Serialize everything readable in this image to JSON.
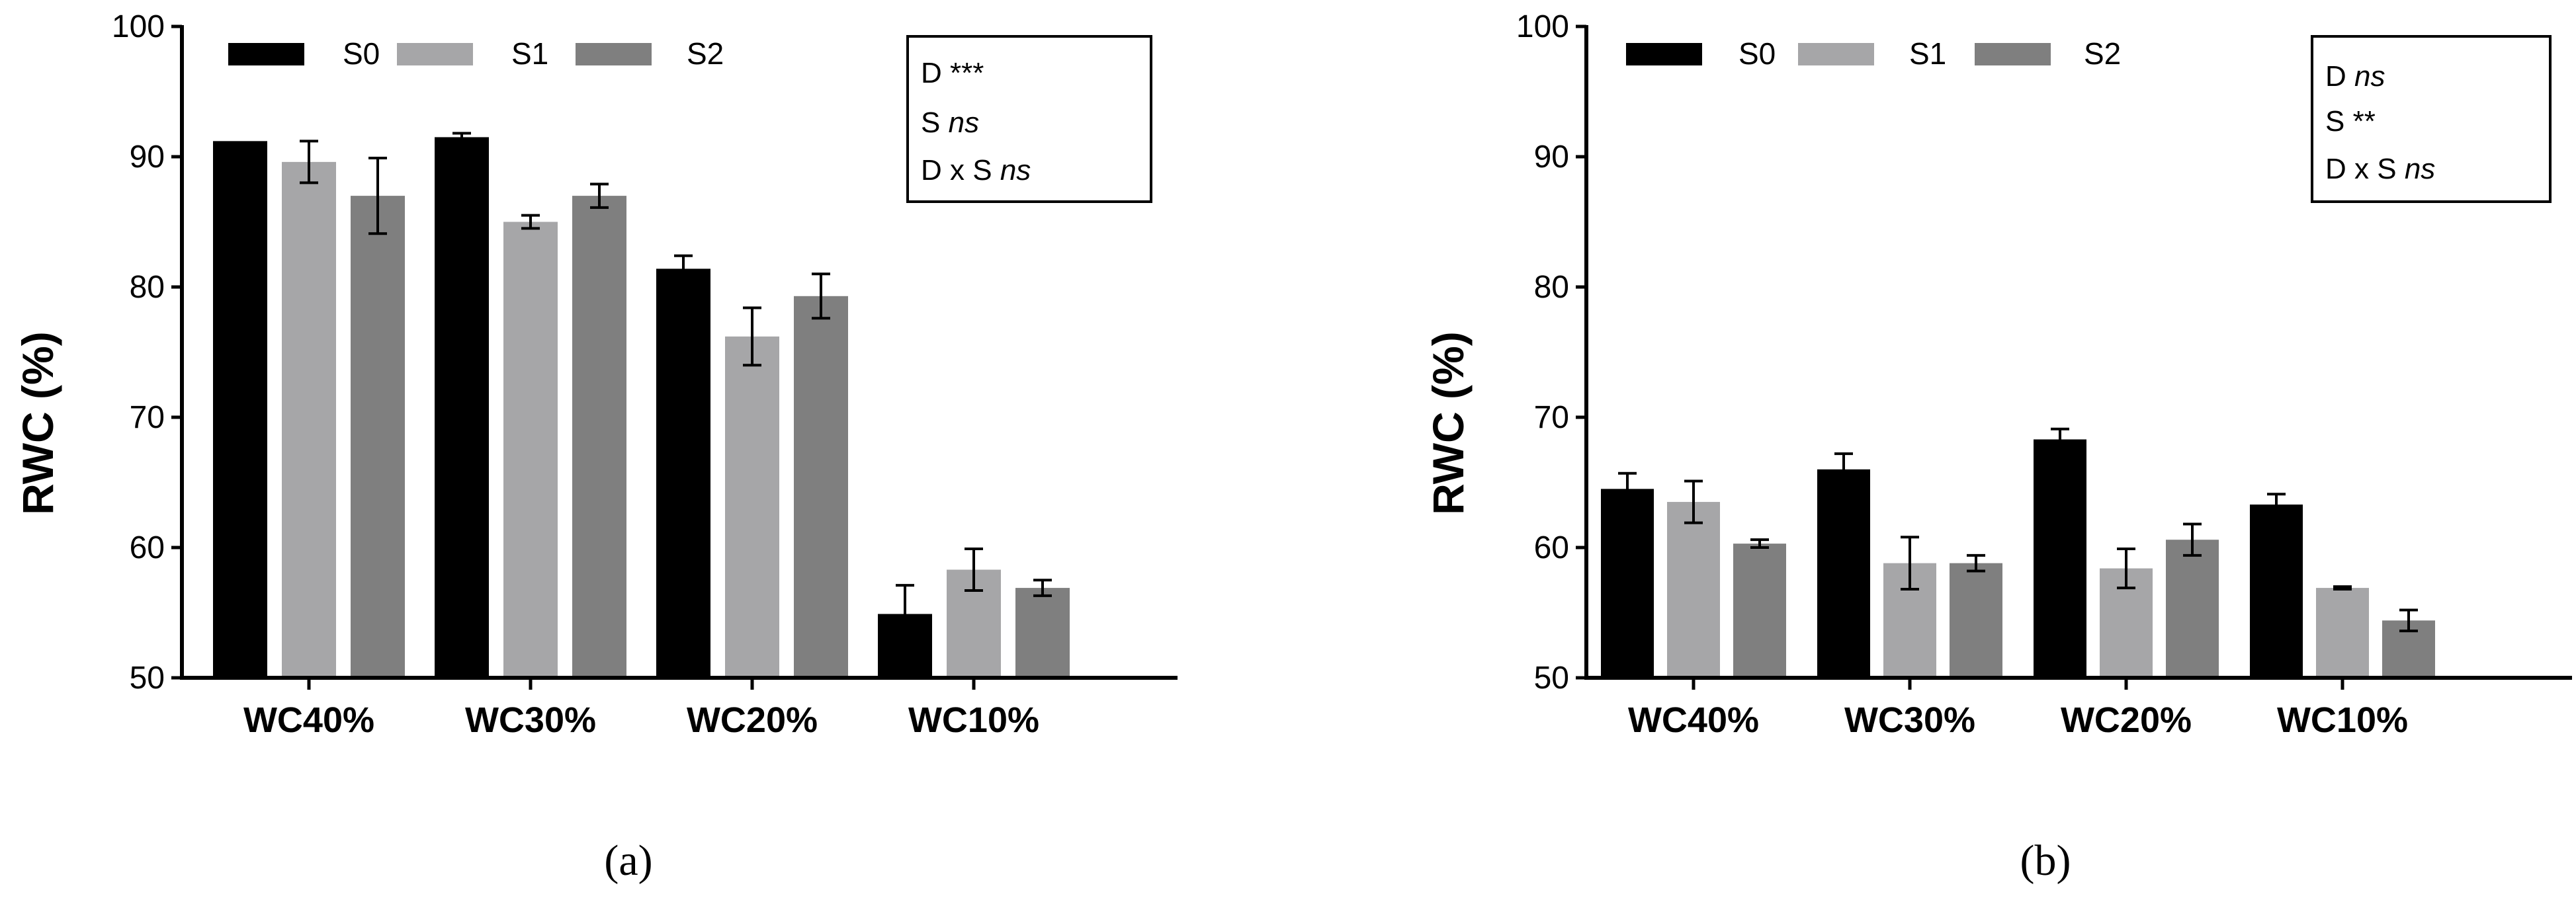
{
  "chart_data": [
    {
      "type": "bar",
      "panel": "a",
      "caption": "(a)",
      "categories": [
        "WC40%",
        "WC30%",
        "WC20%",
        "WC10%"
      ],
      "ylabel": "RWC (%)",
      "xlabel": "",
      "ylim": [
        50,
        100
      ],
      "yticks": [
        "50",
        "60",
        "70",
        "80",
        "90",
        "100"
      ],
      "colors": {
        "S0": "#000000",
        "S1": "#a6a6a8",
        "S2": "#7f7f7f"
      },
      "series": [
        {
          "name": "S0",
          "values": [
            91.2,
            91.5,
            81.4,
            54.9
          ],
          "errors": [
            0.0,
            0.3,
            1.0,
            2.2
          ]
        },
        {
          "name": "S1",
          "values": [
            89.6,
            85.0,
            76.2,
            58.3
          ],
          "errors": [
            1.6,
            0.5,
            2.2,
            1.6
          ]
        },
        {
          "name": "S2",
          "values": [
            87.0,
            87.0,
            79.3,
            56.9
          ],
          "errors": [
            2.9,
            0.9,
            1.7,
            0.6
          ]
        }
      ],
      "stats": {
        "line1_label": "D",
        "line1_value": "***",
        "line2_label": "S",
        "line2_value": "ns",
        "line3_label": "D x S",
        "line3_value": "ns"
      }
    },
    {
      "type": "bar",
      "panel": "b",
      "caption": "(b)",
      "categories": [
        "WC40%",
        "WC30%",
        "WC20%",
        "WC10%"
      ],
      "ylabel": "RWC (%)",
      "xlabel": "",
      "ylim": [
        50,
        100
      ],
      "yticks": [
        "50",
        "60",
        "70",
        "80",
        "90",
        "100"
      ],
      "colors": {
        "S0": "#000000",
        "S1": "#a6a6a8",
        "S2": "#7f7f7f"
      },
      "series": [
        {
          "name": "S0",
          "values": [
            64.5,
            66.0,
            68.3,
            63.3
          ],
          "errors": [
            1.2,
            1.2,
            0.8,
            0.8
          ]
        },
        {
          "name": "S1",
          "values": [
            63.5,
            58.8,
            58.4,
            56.9
          ],
          "errors": [
            1.6,
            2.0,
            1.5,
            0.1
          ]
        },
        {
          "name": "S2",
          "values": [
            60.3,
            58.8,
            60.6,
            54.4
          ],
          "errors": [
            0.3,
            0.6,
            1.2,
            0.8
          ]
        }
      ],
      "stats": {
        "line1_label": "D",
        "line1_value": "ns",
        "line2_label": "S",
        "line2_value": "**",
        "line3_label": "D x S",
        "line3_value": "ns"
      }
    }
  ]
}
